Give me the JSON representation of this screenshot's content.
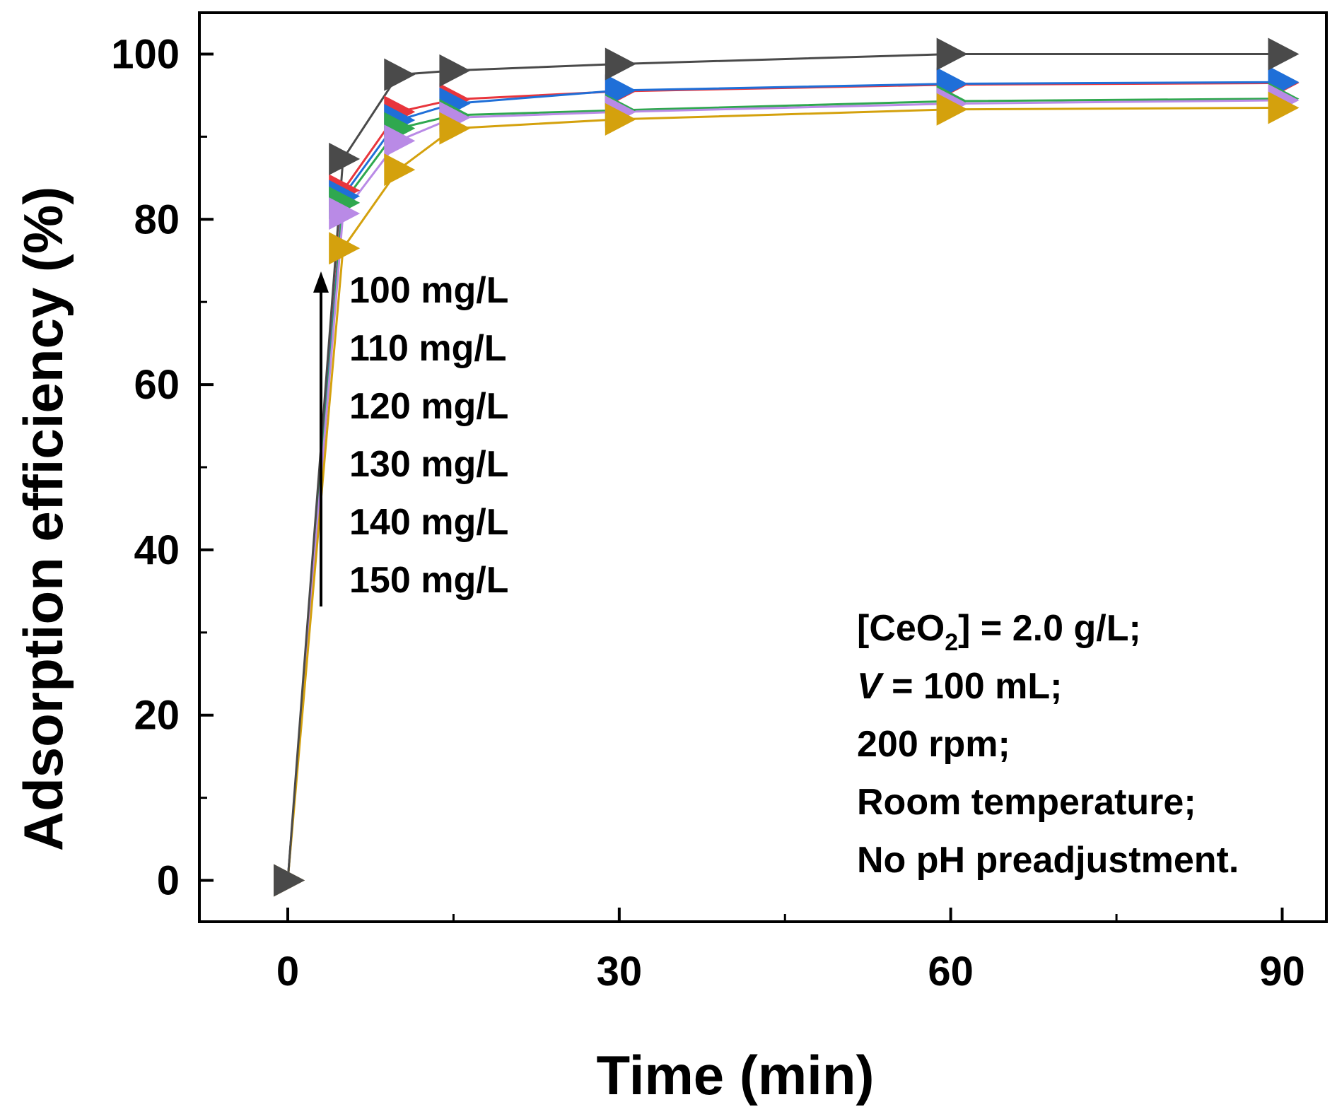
{
  "chart_data": {
    "type": "line",
    "xlabel": "Time (min)",
    "ylabel": "Adsorption efficiency (%)",
    "xlim": [
      -8,
      94
    ],
    "ylim": [
      -5,
      105
    ],
    "x_ticks": [
      0,
      30,
      60,
      90
    ],
    "y_ticks": [
      0,
      20,
      40,
      60,
      80,
      100
    ],
    "marker": "right-triangle",
    "x": [
      0,
      5,
      10,
      15,
      30,
      60,
      90
    ],
    "series": [
      {
        "color": "#e8353c",
        "values": [
          0,
          83.5,
          93.0,
          94.5,
          95.5,
          96.3,
          96.5
        ]
      },
      {
        "color": "#1f6fd8",
        "values": [
          0,
          82.8,
          92.0,
          94.0,
          95.6,
          96.4,
          96.6
        ]
      },
      {
        "color": "#2fa84f",
        "values": [
          0,
          82.0,
          91.0,
          92.6,
          93.2,
          94.3,
          94.6
        ]
      },
      {
        "color": "#b98ae6",
        "values": [
          0,
          80.7,
          89.5,
          92.3,
          93.0,
          94.0,
          94.4
        ]
      },
      {
        "color": "#d4a10d",
        "values": [
          0,
          76.5,
          86.0,
          91.0,
          92.1,
          93.3,
          93.5
        ]
      },
      {
        "color": "#4a4a4a",
        "values": [
          0,
          87.3,
          97.5,
          98.0,
          98.8,
          100.0,
          100.0
        ]
      }
    ],
    "annotation_labels": [
      "100 mg/L",
      "110 mg/L",
      "120 mg/L",
      "130 mg/L",
      "140 mg/L",
      "150 mg/L"
    ],
    "conditions": {
      "line1_prefix": "[CeO",
      "line1_sub": "2",
      "line1_suffix": "] = 2.0 g/L;",
      "line2_var": "V",
      "line2_rest": " = 100 mL;",
      "line3": "200 rpm;",
      "line4": "Room temperature;",
      "line5": "No pH preadjustment."
    }
  }
}
